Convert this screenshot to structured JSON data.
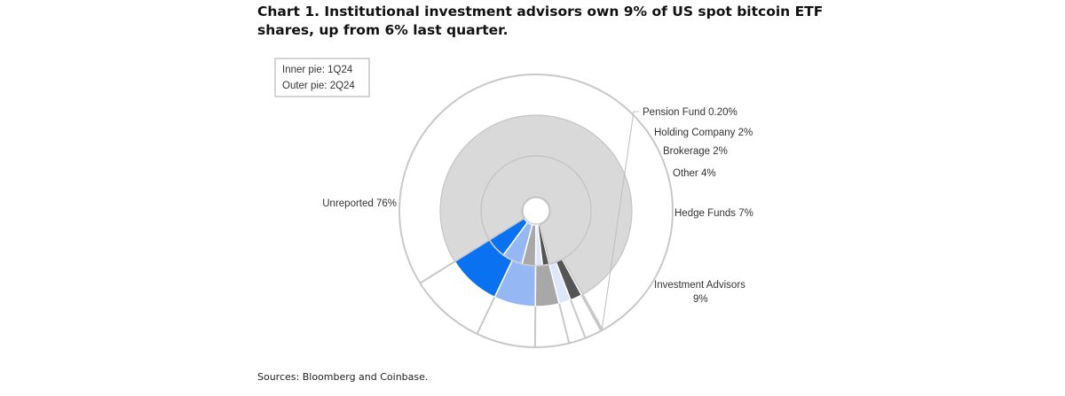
{
  "title": "Chart 1. Institutional investment advisors own 9% of US spot bitcoin ETF shares, up from 6% last quarter.",
  "source": "Sources: Bloomberg and Coinbase.",
  "legend": {
    "line1": "Inner pie: 1Q24",
    "line2": "Outer pie: 2Q24"
  },
  "chart_data": {
    "type": "pie",
    "title": "Chart 1. Institutional investment advisors own 9% of US spot bitcoin ETF shares, up from 6% last quarter.",
    "legend_position": "top-left",
    "colors": {
      "Investment Advisors": "#0a72f0",
      "Hedge Funds": "#95b8f5",
      "Other": "#a8a8a8",
      "Brokerage": "#dde7fb",
      "Holding Company": "#555555",
      "Pension Fund": "#bdbdbd",
      "Unreported": "#d9d9d9"
    },
    "outer": {
      "name": "2Q24",
      "categories": [
        "Investment Advisors",
        "Hedge Funds",
        "Other",
        "Brokerage",
        "Holding Company",
        "Pension Fund",
        "Unreported"
      ],
      "values": [
        9,
        7,
        4,
        2,
        2,
        0.2,
        75.8
      ]
    },
    "inner": {
      "name": "1Q24",
      "categories": [
        "Investment Advisors",
        "Hedge Funds",
        "Other",
        "Brokerage",
        "Holding Company",
        "Pension Fund",
        "Unreported"
      ],
      "values": [
        6,
        6,
        4,
        2,
        2,
        0.2,
        79.8
      ]
    },
    "labels": [
      {
        "text": "Pension Fund 0.20%"
      },
      {
        "text": "Holding Company 2%"
      },
      {
        "text": "Brokerage 2%"
      },
      {
        "text": "Other 4%"
      },
      {
        "text": "Hedge Funds 7%"
      },
      {
        "text": "Investment Advisors",
        "text2": "9%"
      },
      {
        "text": "Unreported 76%"
      }
    ]
  }
}
